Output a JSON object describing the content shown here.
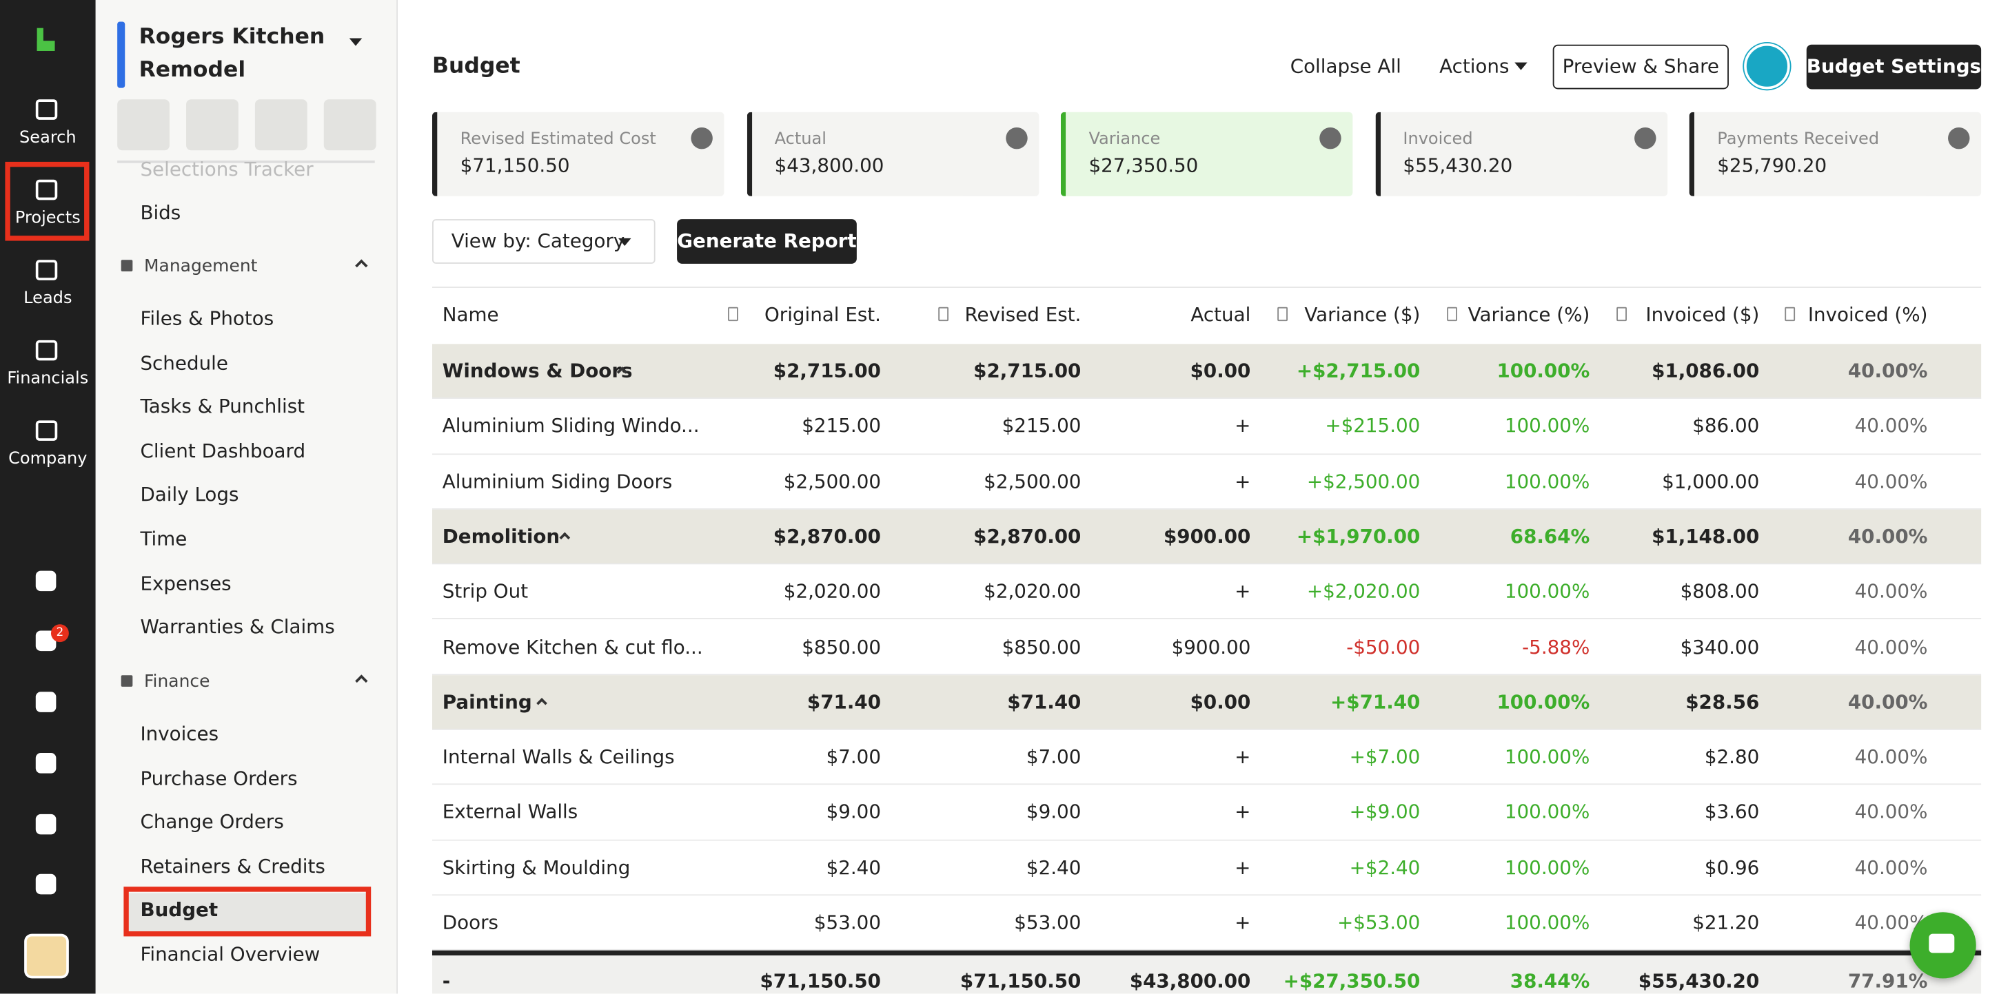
{
  "nav": {
    "items": [
      "Search",
      "Projects",
      "Leads",
      "Financials",
      "Company"
    ],
    "badge": "2"
  },
  "sidebar": {
    "project": "Rogers Kitchen Remodel",
    "top_items": [
      "Selections Tracker",
      "Bids"
    ],
    "sections": [
      {
        "title": "Management",
        "items": [
          "Files & Photos",
          "Schedule",
          "Tasks & Punchlist",
          "Client Dashboard",
          "Daily Logs",
          "Time",
          "Expenses",
          "Warranties & Claims"
        ]
      },
      {
        "title": "Finance",
        "items": [
          "Invoices",
          "Purchase Orders",
          "Change Orders",
          "Retainers & Credits",
          "Budget",
          "Financial Overview"
        ]
      }
    ]
  },
  "header": {
    "title": "Budget",
    "buttons": [
      "Collapse All",
      "Actions",
      "Preview & Share",
      "Budget Settings"
    ]
  },
  "cards": [
    {
      "label": "Revised Estimated Cost",
      "value": "$71,150.50"
    },
    {
      "label": "Actual",
      "value": "$43,800.00"
    },
    {
      "label": "Variance",
      "value": "$27,350.50"
    },
    {
      "label": "Invoiced",
      "value": "$55,430.20"
    },
    {
      "label": "Payments Received",
      "value": "$25,790.20"
    }
  ],
  "toolbar": {
    "view_by": "View by: Category",
    "report": "Generate Report"
  },
  "table": {
    "columns": [
      "Name",
      "Original Est.",
      "Revised Est.",
      "Actual",
      "Variance ($)",
      "Variance (%)",
      "Invoiced ($)",
      "Invoiced (%)"
    ],
    "rows": [
      {
        "group": true,
        "cells": [
          "Windows & Doors",
          "$2,715.00",
          "$2,715.00",
          "$0.00",
          "+$2,715.00",
          "100.00%",
          "$1,086.00",
          "40.00%"
        ]
      },
      {
        "group": false,
        "cells": [
          "Aluminium Sliding Windo...",
          "$215.00",
          "$215.00",
          "+",
          "+$215.00",
          "100.00%",
          "$86.00",
          "40.00%"
        ]
      },
      {
        "group": false,
        "cells": [
          "Aluminium Siding Doors",
          "$2,500.00",
          "$2,500.00",
          "+",
          "+$2,500.00",
          "100.00%",
          "$1,000.00",
          "40.00%"
        ]
      },
      {
        "group": true,
        "cells": [
          "Demolition",
          "$2,870.00",
          "$2,870.00",
          "$900.00",
          "+$1,970.00",
          "68.64%",
          "$1,148.00",
          "40.00%"
        ]
      },
      {
        "group": false,
        "cells": [
          "Strip Out",
          "$2,020.00",
          "$2,020.00",
          "+",
          "+$2,020.00",
          "100.00%",
          "$808.00",
          "40.00%"
        ]
      },
      {
        "group": false,
        "cells": [
          "Remove Kitchen & cut flo...",
          "$850.00",
          "$850.00",
          "$900.00",
          "-$50.00",
          "-5.88%",
          "$340.00",
          "40.00%"
        ]
      },
      {
        "group": true,
        "cells": [
          "Painting",
          "$71.40",
          "$71.40",
          "$0.00",
          "+$71.40",
          "100.00%",
          "$28.56",
          "40.00%"
        ]
      },
      {
        "group": false,
        "cells": [
          "Internal Walls & Ceilings",
          "$7.00",
          "$7.00",
          "+",
          "+$7.00",
          "100.00%",
          "$2.80",
          "40.00%"
        ]
      },
      {
        "group": false,
        "cells": [
          "External Walls",
          "$9.00",
          "$9.00",
          "+",
          "+$9.00",
          "100.00%",
          "$3.60",
          "40.00%"
        ]
      },
      {
        "group": false,
        "cells": [
          "Skirting & Moulding",
          "$2.40",
          "$2.40",
          "+",
          "+$2.40",
          "100.00%",
          "$0.96",
          "40.00%"
        ]
      },
      {
        "group": false,
        "cells": [
          "Doors",
          "$53.00",
          "$53.00",
          "+",
          "+$53.00",
          "100.00%",
          "$21.20",
          "40.00%"
        ]
      }
    ],
    "total": [
      "-",
      "$71,150.50",
      "$71,150.50",
      "$43,800.00",
      "+$27,350.50",
      "38.44%",
      "$55,430.20",
      "77.91%"
    ]
  }
}
